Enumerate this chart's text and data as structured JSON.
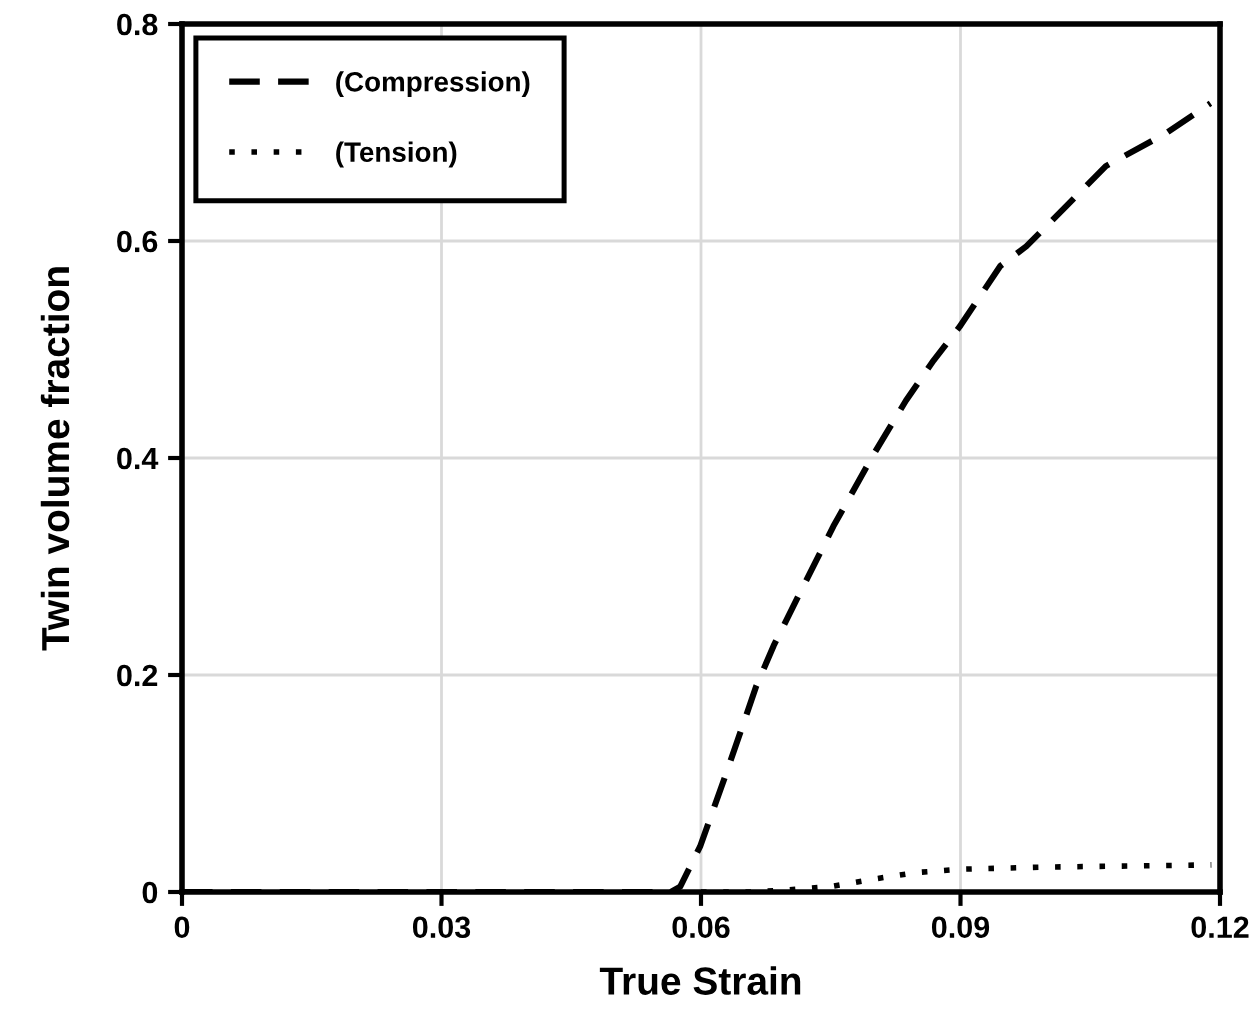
{
  "chart_data": {
    "type": "line",
    "xlabel": "True Strain",
    "ylabel": "Twin volume fraction",
    "xlim": [
      0,
      0.12
    ],
    "ylim": [
      0,
      0.8
    ],
    "xticks": [
      0,
      0.03,
      0.06,
      0.09,
      0.12
    ],
    "yticks": [
      0,
      0.2,
      0.4,
      0.6,
      0.8
    ],
    "grid": true,
    "legend": "top left",
    "series": [
      {
        "name": "(Compression)",
        "color": "#000000",
        "line_style": "dashed",
        "x": [
          0,
          0.01,
          0.02,
          0.03,
          0.04,
          0.05,
          0.0565,
          0.0576,
          0.0599,
          0.0629,
          0.0664,
          0.0684,
          0.0714,
          0.0753,
          0.08,
          0.0837,
          0.0869,
          0.0899,
          0.0946,
          0.0976,
          0.1022,
          0.1068,
          0.1137,
          0.1189
        ],
        "values": [
          0,
          0,
          0,
          0,
          0,
          0,
          0,
          0.005,
          0.042,
          0.109,
          0.19,
          0.227,
          0.275,
          0.337,
          0.404,
          0.453,
          0.49,
          0.521,
          0.577,
          0.595,
          0.632,
          0.669,
          0.699,
          0.727
        ]
      },
      {
        "name": "(Tension)",
        "color": "#000000",
        "line_style": "dotted",
        "x": [
          0.06,
          0.066,
          0.07,
          0.075,
          0.08,
          0.085,
          0.09,
          0.1,
          0.11,
          0.119
        ],
        "values": [
          0,
          0,
          0.002,
          0.005,
          0.012,
          0.018,
          0.021,
          0.023,
          0.024,
          0.025
        ]
      }
    ]
  }
}
